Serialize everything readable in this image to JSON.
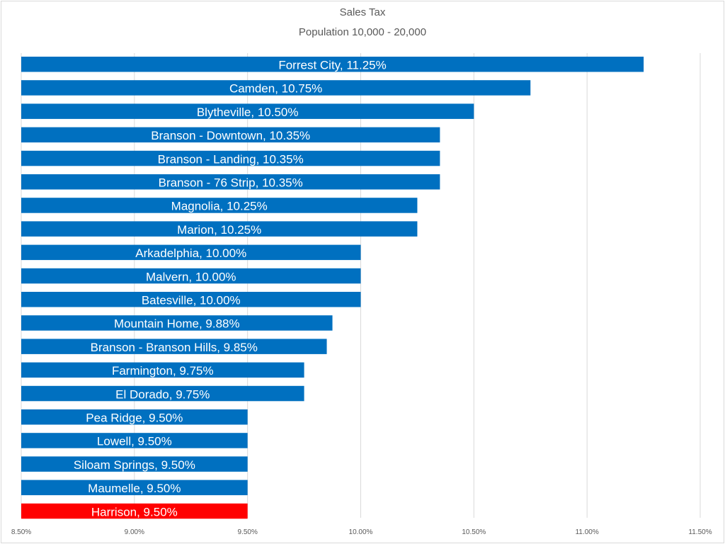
{
  "chart_data": {
    "type": "bar",
    "orientation": "horizontal",
    "title": "Sales Tax",
    "subtitle": "Population 10,000 - 20,000",
    "xlim": [
      8.5,
      11.5
    ],
    "ticks": [
      "8.50%",
      "9.00%",
      "9.50%",
      "10.00%",
      "10.50%",
      "11.00%",
      "11.50%"
    ],
    "tick_values": [
      8.5,
      9.0,
      9.5,
      10.0,
      10.5,
      11.0,
      11.5
    ],
    "grid": true,
    "colors": {
      "default": "#0070c0",
      "highlight": "#ff0000"
    },
    "bars": [
      {
        "label": "Forrest City, 11.25%",
        "value": 11.25
      },
      {
        "label": "Camden, 10.75%",
        "value": 10.75
      },
      {
        "label": "Blytheville, 10.50%",
        "value": 10.5
      },
      {
        "label": "Branson - Downtown, 10.35%",
        "value": 10.35
      },
      {
        "label": "Branson - Landing, 10.35%",
        "value": 10.35
      },
      {
        "label": "Branson - 76 Strip, 10.35%",
        "value": 10.35
      },
      {
        "label": "Magnolia, 10.25%",
        "value": 10.25
      },
      {
        "label": "Marion, 10.25%",
        "value": 10.25
      },
      {
        "label": "Arkadelphia, 10.00%",
        "value": 10.0
      },
      {
        "label": "Malvern, 10.00%",
        "value": 10.0
      },
      {
        "label": "Batesville, 10.00%",
        "value": 10.0
      },
      {
        "label": "Mountain Home, 9.88%",
        "value": 9.875
      },
      {
        "label": "Branson - Branson Hills, 9.85%",
        "value": 9.85
      },
      {
        "label": "Farmington, 9.75%",
        "value": 9.75
      },
      {
        "label": "El Dorado, 9.75%",
        "value": 9.75
      },
      {
        "label": "Pea Ridge, 9.50%",
        "value": 9.5
      },
      {
        "label": "Lowell, 9.50%",
        "value": 9.5
      },
      {
        "label": "Siloam Springs, 9.50%",
        "value": 9.5
      },
      {
        "label": "Maumelle, 9.50%",
        "value": 9.5
      },
      {
        "label": "Harrison, 9.50%",
        "value": 9.5,
        "highlight": true
      }
    ]
  }
}
